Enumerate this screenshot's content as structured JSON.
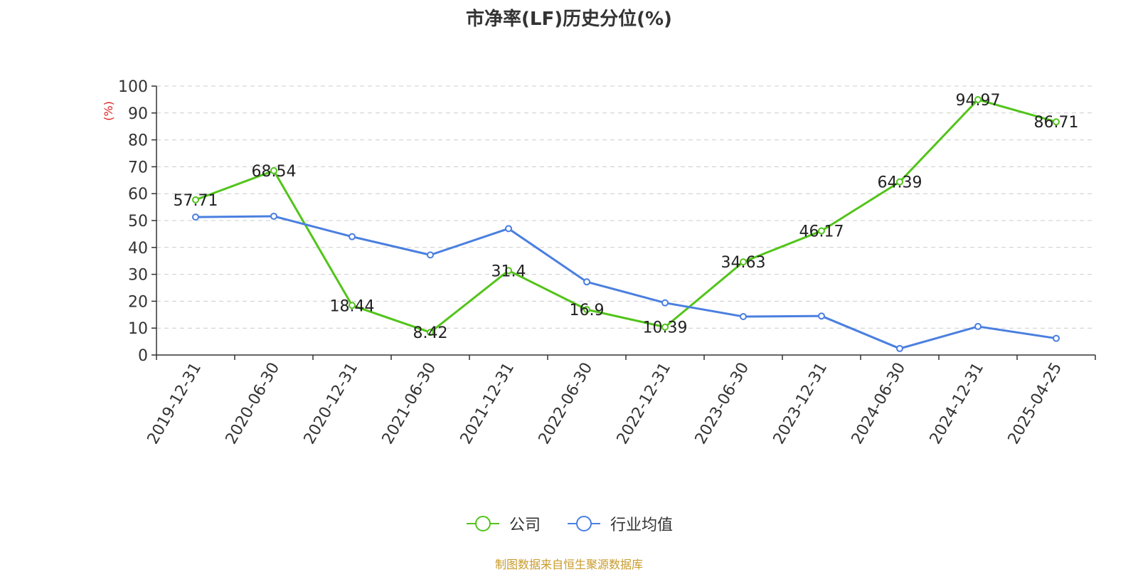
{
  "title": "市净率(LF)历史分位(%)",
  "footer": "制图数据来自恒生聚源数据库",
  "colors": {
    "company": "#52c41a",
    "industry": "#4a7fe0",
    "ylabel": "#e02020",
    "footer": "#c89b2b"
  },
  "chart_data": {
    "type": "line",
    "title": "市净率(LF)历史分位(%)",
    "xlabel": "",
    "ylabel": "(%)",
    "ylim": [
      0,
      100
    ],
    "yticks": [
      0,
      10,
      20,
      30,
      40,
      50,
      60,
      70,
      80,
      90,
      100
    ],
    "grid": true,
    "legend_position": "bottom",
    "categories": [
      "2019-12-31",
      "2020-06-30",
      "2020-12-31",
      "2021-06-30",
      "2021-12-31",
      "2022-06-30",
      "2022-12-31",
      "2023-06-30",
      "2023-12-31",
      "2024-06-30",
      "2024-12-31",
      "2025-04-25"
    ],
    "series": [
      {
        "name": "公司",
        "values": [
          57.71,
          68.54,
          18.44,
          8.42,
          31.4,
          16.9,
          10.39,
          34.63,
          46.17,
          64.39,
          94.97,
          86.71
        ],
        "data_labels": true
      },
      {
        "name": "行业均值",
        "values": [
          51.3,
          51.6,
          44.0,
          37.2,
          47.0,
          27.2,
          19.4,
          14.3,
          14.5,
          2.4,
          10.6,
          6.2
        ],
        "data_labels": false
      }
    ]
  }
}
